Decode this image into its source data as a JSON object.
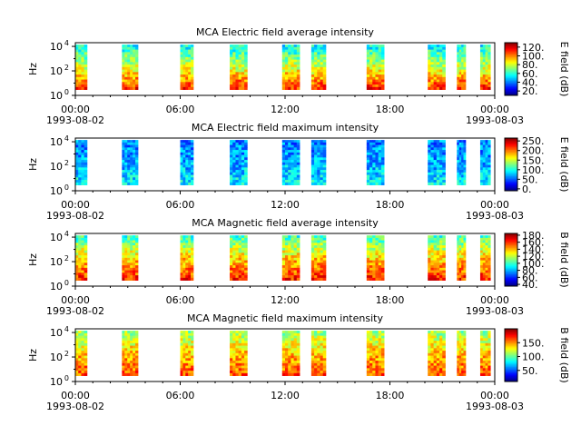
{
  "chart_data": [
    {
      "type": "heatmap",
      "title": "MCA  Electric field average intensity",
      "ylabel": "Hz",
      "ytick_labels": [
        "10^4",
        "10^2",
        "10^0"
      ],
      "yscale": "log",
      "ylim": [
        1,
        20000
      ],
      "xlim": [
        "1993-08-02 00:00",
        "1993-08-03 00:00"
      ],
      "xtick_labels": [
        "00:00\n1993-08-02",
        "06:00",
        "12:00",
        "18:00",
        "00:00\n1993-08-03"
      ],
      "colorbar": {
        "label": "E field (dB)",
        "ticks": [
          "20.",
          "40.",
          "60.",
          "80.",
          "100.",
          "120."
        ],
        "range": [
          10,
          130
        ]
      },
      "data_intervals_utc": [
        [
          "00:00",
          "00:40"
        ],
        [
          "02:40",
          "03:35"
        ],
        [
          "06:00",
          "06:45"
        ],
        [
          "08:50",
          "09:50"
        ],
        [
          "11:50",
          "12:50"
        ],
        [
          "13:30",
          "14:20"
        ],
        [
          "16:40",
          "17:40"
        ],
        [
          "20:10",
          "21:10"
        ],
        [
          "21:50",
          "22:20"
        ],
        [
          "23:10",
          "23:45"
        ]
      ],
      "typical_levels_db": {
        "low_freq": 110,
        "mid_freq": 80,
        "high_freq": 55
      }
    },
    {
      "type": "heatmap",
      "title": "MCA  Electric field maximum intensity",
      "ylabel": "Hz",
      "ytick_labels": [
        "10^4",
        "10^2",
        "10^0"
      ],
      "yscale": "log",
      "ylim": [
        1,
        20000
      ],
      "xlim": [
        "1993-08-02 00:00",
        "1993-08-03 00:00"
      ],
      "xtick_labels": [
        "00:00\n1993-08-02",
        "06:00",
        "12:00",
        "18:00",
        "00:00\n1993-08-03"
      ],
      "colorbar": {
        "label": "E field (dB)",
        "ticks": [
          "0.",
          "50.",
          "100.",
          "150.",
          "200.",
          "250."
        ],
        "range": [
          -10,
          265
        ]
      },
      "data_intervals_utc": [
        [
          "00:00",
          "00:40"
        ],
        [
          "02:40",
          "03:35"
        ],
        [
          "06:00",
          "06:45"
        ],
        [
          "08:50",
          "09:50"
        ],
        [
          "11:50",
          "12:50"
        ],
        [
          "13:30",
          "14:20"
        ],
        [
          "16:40",
          "17:40"
        ],
        [
          "20:10",
          "21:10"
        ],
        [
          "21:50",
          "22:20"
        ],
        [
          "23:10",
          "23:45"
        ]
      ],
      "typical_levels_db": {
        "low_freq": 90,
        "mid_freq": 70,
        "high_freq": 60
      }
    },
    {
      "type": "heatmap",
      "title": "MCA  Magnetic field average intensity",
      "ylabel": "Hz",
      "ytick_labels": [
        "10^4",
        "10^2",
        "10^0"
      ],
      "yscale": "log",
      "ylim": [
        1,
        20000
      ],
      "xlim": [
        "1993-08-02 00:00",
        "1993-08-03 00:00"
      ],
      "xtick_labels": [
        "00:00\n1993-08-02",
        "06:00",
        "12:00",
        "18:00",
        "00:00\n1993-08-03"
      ],
      "colorbar": {
        "label": "B field (dB)",
        "ticks": [
          "40.",
          "60.",
          "80.",
          "100.",
          "120.",
          "140.",
          "160.",
          "180."
        ],
        "range": [
          35,
          185
        ]
      },
      "data_intervals_utc": [
        [
          "00:00",
          "00:40"
        ],
        [
          "02:40",
          "03:35"
        ],
        [
          "06:00",
          "06:45"
        ],
        [
          "08:50",
          "09:50"
        ],
        [
          "11:50",
          "12:50"
        ],
        [
          "13:30",
          "14:20"
        ],
        [
          "16:40",
          "17:40"
        ],
        [
          "20:10",
          "21:10"
        ],
        [
          "21:50",
          "22:20"
        ],
        [
          "23:10",
          "23:45"
        ]
      ],
      "typical_levels_db": {
        "low_freq": 160,
        "mid_freq": 135,
        "high_freq": 100
      }
    },
    {
      "type": "heatmap",
      "title": "MCA  Magnetic field maximum intensity",
      "ylabel": "Hz",
      "ytick_labels": [
        "10^4",
        "10^2",
        "10^0"
      ],
      "yscale": "log",
      "ylim": [
        1,
        20000
      ],
      "xlim": [
        "1993-08-02 00:00",
        "1993-08-03 00:00"
      ],
      "xtick_labels": [
        "00:00\n1993-08-02",
        "06:00",
        "12:00",
        "18:00",
        "00:00\n1993-08-03"
      ],
      "colorbar": {
        "label": "B field (dB)",
        "ticks": [
          "50.",
          "100.",
          "150."
        ],
        "range": [
          10,
          200
        ]
      },
      "data_intervals_utc": [
        [
          "00:00",
          "00:40"
        ],
        [
          "02:40",
          "03:35"
        ],
        [
          "06:00",
          "06:45"
        ],
        [
          "08:50",
          "09:50"
        ],
        [
          "11:50",
          "12:50"
        ],
        [
          "13:30",
          "14:20"
        ],
        [
          "16:40",
          "17:40"
        ],
        [
          "20:10",
          "21:10"
        ],
        [
          "21:50",
          "22:20"
        ],
        [
          "23:10",
          "23:45"
        ]
      ],
      "typical_levels_db": {
        "low_freq": 160,
        "mid_freq": 140,
        "high_freq": 110
      }
    }
  ]
}
